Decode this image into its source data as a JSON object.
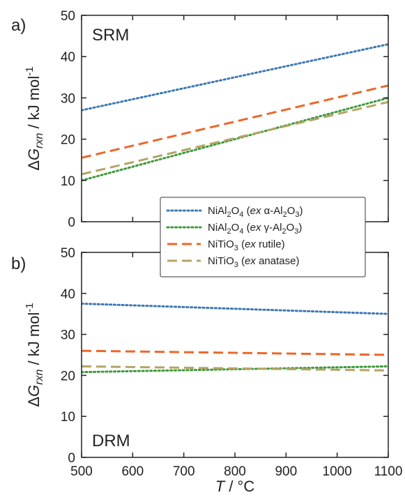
{
  "colors": {
    "ni_al2o4_alpha": "#3c78b4",
    "ni_al2o4_gamma": "#3a9a3a",
    "ni_tio3_rutile": "#ee6628",
    "ni_tio3_anatase": "#b4a464",
    "axes": "#222222"
  },
  "legend": {
    "items": [
      {
        "parts": [
          {
            "t": "NiAl"
          },
          {
            "t": "2",
            "sub": true
          },
          {
            "t": "O"
          },
          {
            "t": "4",
            "sub": true
          },
          {
            "t": " ("
          },
          {
            "t": "ex",
            "it": true
          },
          {
            "t": " α-Al"
          },
          {
            "t": "2",
            "sub": true
          },
          {
            "t": "O"
          },
          {
            "t": "3",
            "sub": true
          },
          {
            "t": ")"
          }
        ]
      },
      {
        "parts": [
          {
            "t": "NiAl"
          },
          {
            "t": "2",
            "sub": true
          },
          {
            "t": "O"
          },
          {
            "t": "4",
            "sub": true
          },
          {
            "t": " ("
          },
          {
            "t": "ex",
            "it": true
          },
          {
            "t": " γ-Al"
          },
          {
            "t": "2",
            "sub": true
          },
          {
            "t": "O"
          },
          {
            "t": "3",
            "sub": true
          },
          {
            "t": ")"
          }
        ]
      },
      {
        "parts": [
          {
            "t": "NiTiO"
          },
          {
            "t": "3",
            "sub": true
          },
          {
            "t": " ("
          },
          {
            "t": "ex",
            "it": true
          },
          {
            "t": " rutile)"
          }
        ]
      },
      {
        "parts": [
          {
            "t": "NiTiO"
          },
          {
            "t": "3",
            "sub": true
          },
          {
            "t": " ("
          },
          {
            "t": "ex",
            "it": true
          },
          {
            "t": " anatase)"
          }
        ]
      }
    ]
  },
  "chart_data": [
    {
      "type": "line",
      "panel_label": "a)",
      "title": "SRM",
      "xlabel": "T / °C",
      "ylabel": "ΔG_rxn / kJ mol-1",
      "xlim": [
        500,
        1100
      ],
      "ylim": [
        0,
        50
      ],
      "xticks": [
        500,
        600,
        700,
        800,
        900,
        1000,
        1100
      ],
      "yticks": [
        0,
        10,
        20,
        30,
        40,
        50
      ],
      "grid": false,
      "legend_position": "bottom-right",
      "series": [
        {
          "name": "NiAl2O4 (ex α-Al2O3)",
          "style": "dotted",
          "color_key": "ni_al2o4_alpha",
          "x": [
            500,
            1100
          ],
          "y": [
            27.0,
            43.0
          ]
        },
        {
          "name": "NiAl2O4 (ex γ-Al2O3)",
          "style": "dotted",
          "color_key": "ni_al2o4_gamma",
          "x": [
            500,
            1100
          ],
          "y": [
            10.0,
            30.0
          ]
        },
        {
          "name": "NiTiO3 (ex rutile)",
          "style": "dashed",
          "color_key": "ni_tio3_rutile",
          "x": [
            500,
            1100
          ],
          "y": [
            15.5,
            33.0
          ]
        },
        {
          "name": "NiTiO3 (ex anatase)",
          "style": "dashed",
          "color_key": "ni_tio3_anatase",
          "x": [
            500,
            1100
          ],
          "y": [
            11.5,
            29.0
          ]
        }
      ]
    },
    {
      "type": "line",
      "panel_label": "b)",
      "title": "DRM",
      "xlabel": "T / °C",
      "ylabel": "ΔG_rxn / kJ mol-1",
      "xlim": [
        500,
        1100
      ],
      "ylim": [
        0,
        50
      ],
      "xticks": [
        500,
        600,
        700,
        800,
        900,
        1000,
        1100
      ],
      "yticks": [
        0,
        10,
        20,
        30,
        40,
        50
      ],
      "grid": false,
      "series": [
        {
          "name": "NiAl2O4 (ex α-Al2O3)",
          "style": "dotted",
          "color_key": "ni_al2o4_alpha",
          "x": [
            500,
            1100
          ],
          "y": [
            37.5,
            35.0
          ]
        },
        {
          "name": "NiAl2O4 (ex γ-Al2O3)",
          "style": "dotted",
          "color_key": "ni_al2o4_gamma",
          "x": [
            500,
            1100
          ],
          "y": [
            20.8,
            22.2
          ]
        },
        {
          "name": "NiTiO3 (ex rutile)",
          "style": "dashed",
          "color_key": "ni_tio3_rutile",
          "x": [
            500,
            1100
          ],
          "y": [
            26.0,
            25.0
          ]
        },
        {
          "name": "NiTiO3 (ex anatase)",
          "style": "dashed",
          "color_key": "ni_tio3_anatase",
          "x": [
            500,
            1100
          ],
          "y": [
            22.2,
            21.2
          ]
        }
      ]
    }
  ]
}
